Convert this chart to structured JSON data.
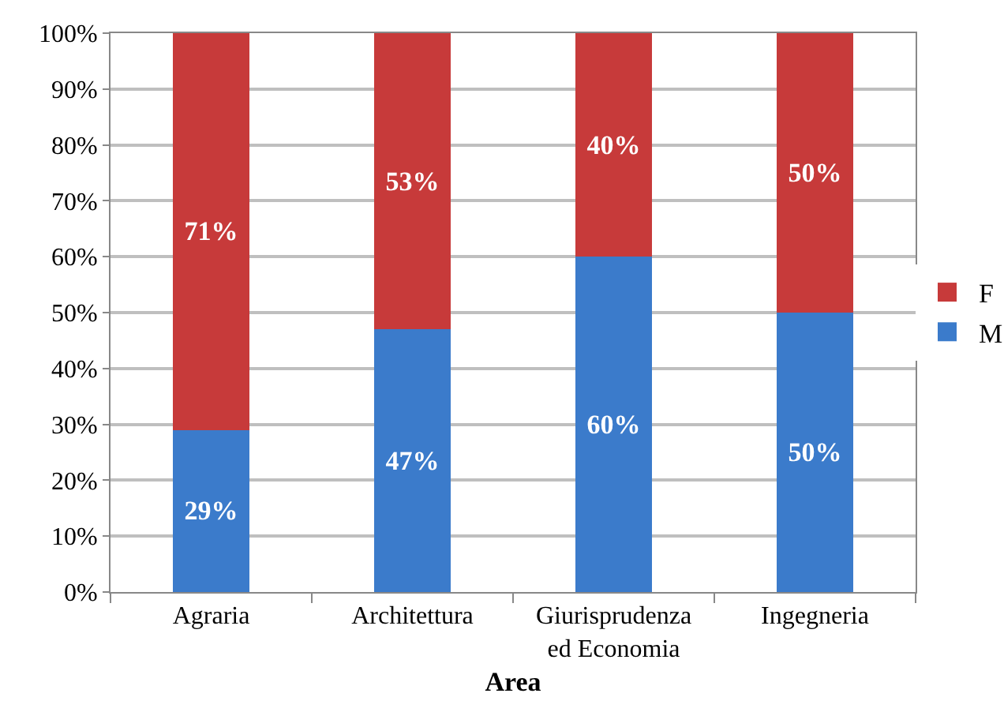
{
  "chart_data": {
    "type": "bar",
    "stacked": true,
    "categories": [
      "Agraria",
      "Architettura",
      "Giurisprudenza ed Economia",
      "Ingegneria"
    ],
    "series": [
      {
        "name": "M",
        "color": "#3b7bcb",
        "values": [
          29,
          47,
          60,
          50
        ],
        "value_labels": [
          "29%",
          "47%",
          "60%",
          "50%"
        ]
      },
      {
        "name": "F",
        "color": "#c73a3a",
        "values": [
          71,
          53,
          40,
          50
        ],
        "value_labels": [
          "71%",
          "53%",
          "40%",
          "50%"
        ]
      }
    ],
    "xlabel": "Area",
    "ylim": [
      0,
      100
    ],
    "yticks": [
      {
        "value": 0,
        "label": "0%"
      },
      {
        "value": 10,
        "label": "10%"
      },
      {
        "value": 20,
        "label": "20%"
      },
      {
        "value": 30,
        "label": "30%"
      },
      {
        "value": 40,
        "label": "40%"
      },
      {
        "value": 50,
        "label": "50%"
      },
      {
        "value": 60,
        "label": "60%"
      },
      {
        "value": 70,
        "label": "70%"
      },
      {
        "value": 80,
        "label": "80%"
      },
      {
        "value": 90,
        "label": "90%"
      },
      {
        "value": 100,
        "label": "100%"
      }
    ],
    "grid": "y",
    "legend": "right"
  }
}
